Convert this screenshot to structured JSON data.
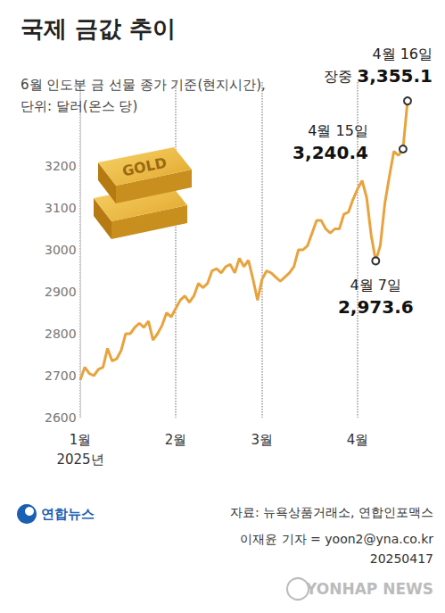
{
  "chart_data": {
    "type": "line",
    "title": "국제 금값 추이",
    "subtitle": "6월 인도분 금 선물 종가 기준(현지시간),\n단위: 달러(온스 당)",
    "categories": [
      "1월\n2025년",
      null,
      null,
      null,
      null,
      null,
      null,
      null,
      null,
      null,
      null,
      null,
      null,
      null,
      null,
      null,
      null,
      null,
      null,
      null,
      null,
      "2월",
      null,
      null,
      null,
      null,
      null,
      null,
      null,
      null,
      null,
      null,
      null,
      null,
      null,
      null,
      null,
      null,
      null,
      null,
      "3월",
      null,
      null,
      null,
      null,
      null,
      null,
      null,
      null,
      null,
      null,
      null,
      null,
      null,
      null,
      null,
      null,
      null,
      null,
      null,
      null,
      "4월",
      null,
      null,
      null,
      null,
      null,
      null,
      null,
      null,
      null,
      null,
      null
    ],
    "values": [
      2690,
      2720,
      2705,
      2700,
      2715,
      2720,
      2765,
      2735,
      2740,
      2760,
      2800,
      2800,
      2815,
      2825,
      2815,
      2830,
      2785,
      2800,
      2820,
      2850,
      2840,
      2860,
      2880,
      2890,
      2875,
      2890,
      2920,
      2910,
      2920,
      2950,
      2955,
      2945,
      2960,
      2965,
      2945,
      2980,
      2960,
      2975,
      2930,
      2880,
      2930,
      2950,
      2945,
      2935,
      2925,
      2935,
      2945,
      2960,
      3000,
      3000,
      3010,
      3040,
      3070,
      3070,
      3050,
      3040,
      3050,
      3050,
      3085,
      3090,
      3120,
      3145,
      3165,
      3125,
      3035,
      2973.6,
      3010,
      3110,
      3175,
      3235,
      3225,
      3240.4,
      3355.1
    ],
    "color": "#E8A33D",
    "ylim": [
      2600,
      3400
    ],
    "yticks": [
      2600,
      2700,
      2800,
      2900,
      3000,
      3100,
      3200
    ],
    "grid": "x",
    "annotations": [
      {
        "label": "4월 16일",
        "prefix": "장중",
        "value": 3355.1,
        "value_label": "3,355.1"
      },
      {
        "label": "4월 15일",
        "value": 3240.4,
        "value_label": "3,240.4"
      },
      {
        "label": "4월 7일",
        "value": 2973.6,
        "value_label": "2,973.6"
      }
    ],
    "image_text": "GOLD",
    "source": "자료: 뉴욕상품거래소, 연합인포맥스",
    "byline": "이재윤 기자 = yoon2@yna.co.kr",
    "date": "20250417",
    "logo": "연합뉴스",
    "watermark": "YONHAP NEWS"
  }
}
